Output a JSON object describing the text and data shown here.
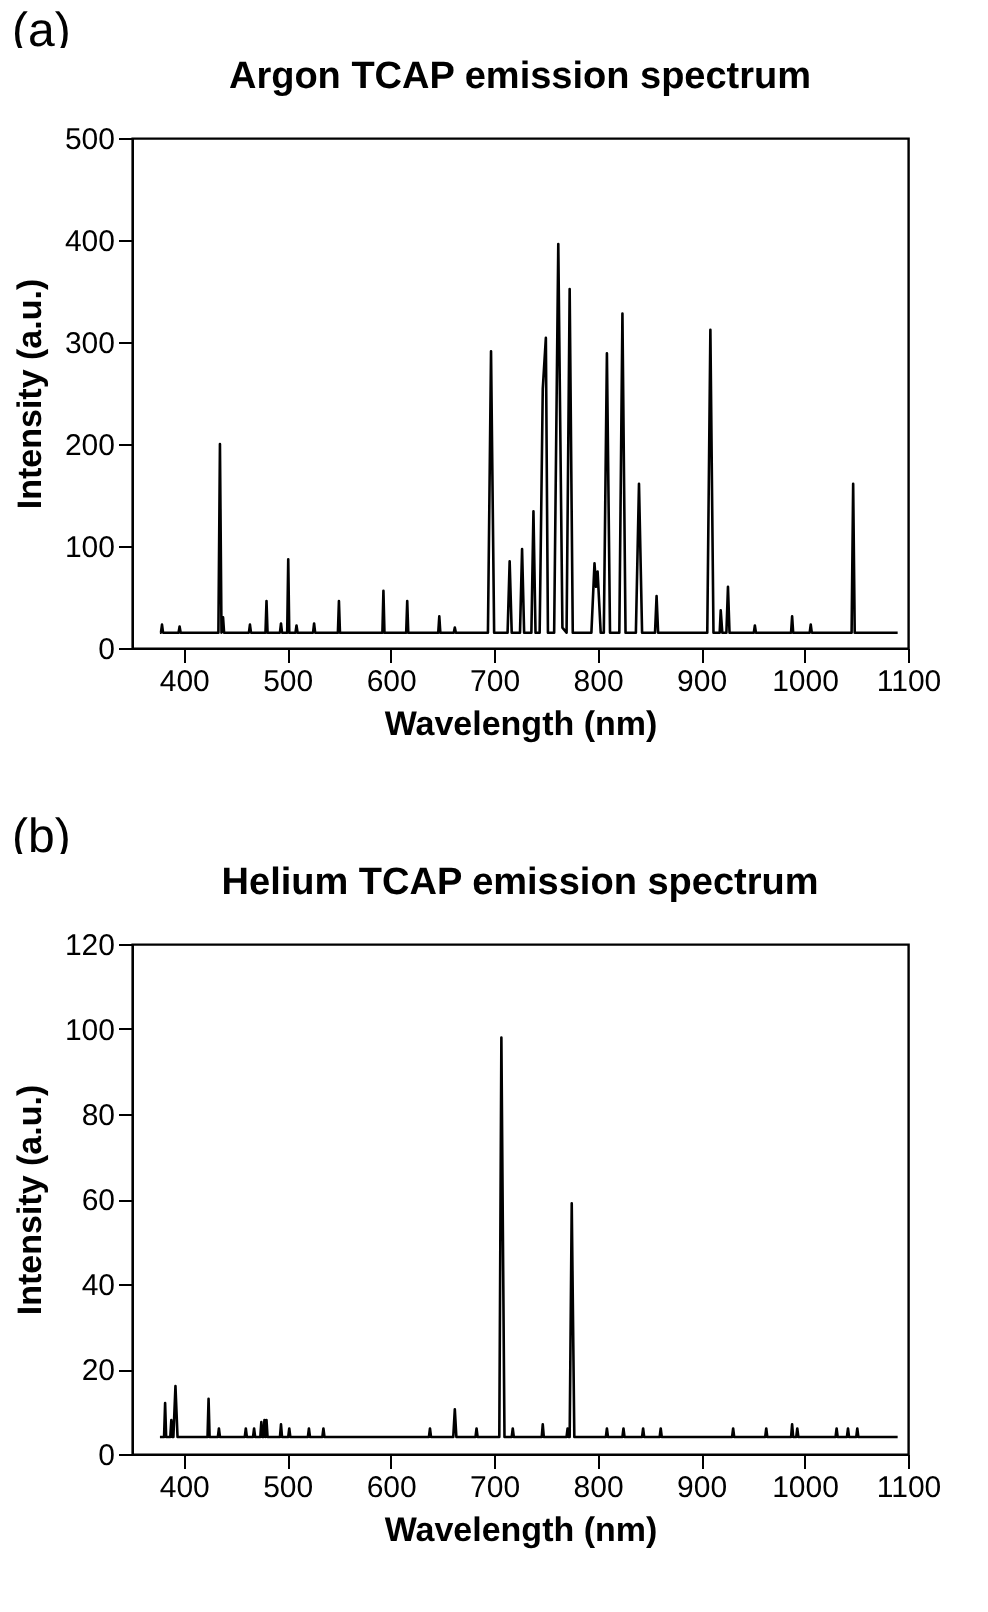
{
  "chart_data": [
    {
      "type": "line",
      "title": "Argon TCAP emission spectrum",
      "xlabel": "Wavelength (nm)",
      "ylabel": "Intensity (a.u.)",
      "annotations": [
        "(a)"
      ],
      "color": "#000000",
      "grid": false,
      "xlim": [
        350,
        1100
      ],
      "xticks": [
        400,
        500,
        600,
        700,
        800,
        900,
        1000,
        1100
      ],
      "ylim": [
        0,
        500
      ],
      "yticks": [
        0,
        100,
        200,
        300,
        400,
        500
      ],
      "x": [
        377,
        378,
        379,
        380,
        395,
        396,
        397,
        433.5,
        435,
        436.5,
        438,
        439,
        463,
        464,
        465,
        479,
        480,
        481,
        493,
        494,
        495,
        500,
        501,
        502,
        508,
        509,
        510,
        525,
        526,
        527,
        549,
        550,
        551,
        592,
        593,
        594,
        615,
        616,
        617,
        646,
        647,
        648,
        661,
        662,
        663,
        694,
        697,
        700,
        713,
        715,
        717,
        725,
        727,
        729,
        736,
        738,
        740,
        744,
        747,
        750,
        752,
        758,
        762,
        766,
        770,
        773,
        776,
        794,
        797,
        798.5,
        800,
        803,
        806,
        809,
        812,
        821,
        824,
        827,
        837,
        840,
        843,
        855.5,
        857,
        858.5,
        906,
        909,
        912,
        918,
        919,
        920.5,
        924.5,
        926,
        927.5,
        951,
        952,
        953,
        987,
        988,
        989,
        1005,
        1006,
        1007,
        1045.5,
        1047,
        1048.5,
        1090
      ],
      "values": [
        15,
        15,
        23,
        15,
        15,
        21,
        15,
        15,
        200,
        15,
        30,
        15,
        15,
        23,
        15,
        15,
        46,
        15,
        15,
        24,
        15,
        15,
        87,
        15,
        15,
        22,
        15,
        15,
        24,
        15,
        15,
        46,
        15,
        15,
        56,
        15,
        15,
        46,
        15,
        15,
        31,
        15,
        15,
        20,
        15,
        15,
        291,
        15,
        15,
        85,
        15,
        15,
        97,
        15,
        15,
        134,
        15,
        15,
        254,
        304,
        15,
        15,
        396,
        20,
        15,
        352,
        15,
        15,
        83,
        60,
        75,
        15,
        15,
        289,
        15,
        15,
        328,
        15,
        15,
        161,
        15,
        15,
        51,
        15,
        15,
        312,
        15,
        15,
        37,
        15,
        15,
        60,
        15,
        15,
        22,
        15,
        15,
        31,
        15,
        15,
        23,
        15,
        15,
        161,
        15,
        15
      ]
    },
    {
      "type": "line",
      "title": "Helium TCAP emission spectrum",
      "xlabel": "Wavelength (nm)",
      "ylabel": "Intensity (a.u.)",
      "annotations": [
        "(b)"
      ],
      "color": "#000000",
      "grid": false,
      "xlim": [
        350,
        1100
      ],
      "xticks": [
        400,
        500,
        600,
        700,
        800,
        900,
        1000,
        1100
      ],
      "ylim": [
        0,
        120
      ],
      "yticks": [
        0,
        20,
        40,
        60,
        80,
        100,
        120
      ],
      "x": [
        377,
        381,
        382,
        383,
        387,
        388,
        389,
        390,
        392,
        394,
        423,
        424,
        425,
        433,
        434,
        435,
        459,
        460,
        461,
        467,
        468,
        469,
        474,
        475,
        476,
        477,
        478,
        479,
        480,
        481,
        493,
        494,
        495,
        501,
        502,
        503,
        520,
        521,
        522,
        534,
        535,
        536,
        637,
        638,
        639,
        660.5,
        662,
        663.5,
        682,
        683,
        684,
        705,
        707,
        710,
        717,
        718,
        719,
        746,
        747,
        748,
        770,
        771,
        772,
        773,
        775,
        777.5,
        808,
        809,
        810,
        824,
        825,
        826,
        843,
        844,
        845,
        860,
        861,
        862,
        930,
        931,
        932,
        962,
        963,
        964,
        987,
        988,
        989,
        992,
        993,
        994,
        1030,
        1031,
        1032,
        1041,
        1042,
        1043,
        1050,
        1051,
        1052,
        1090
      ],
      "values": [
        4,
        4,
        12,
        4,
        4,
        8,
        4,
        4,
        16,
        4,
        4,
        13,
        4,
        4,
        6,
        4,
        4,
        6,
        4,
        4,
        6,
        4,
        4,
        7.5,
        4,
        4,
        8,
        4,
        8,
        4,
        4,
        7,
        4,
        4,
        6,
        4,
        4,
        6,
        4,
        4,
        6,
        4,
        4,
        6,
        4,
        4,
        10.5,
        4,
        4,
        6,
        4,
        4,
        98,
        4,
        4,
        6,
        4,
        4,
        7,
        4,
        4,
        6,
        4,
        4,
        59,
        4,
        4,
        6,
        4,
        4,
        6,
        4,
        4,
        6,
        4,
        4,
        6,
        4,
        4,
        6,
        4,
        4,
        6,
        4,
        4,
        7,
        4,
        4,
        6,
        4,
        4,
        6,
        4,
        4,
        6,
        4,
        4,
        6,
        4,
        4
      ]
    }
  ]
}
